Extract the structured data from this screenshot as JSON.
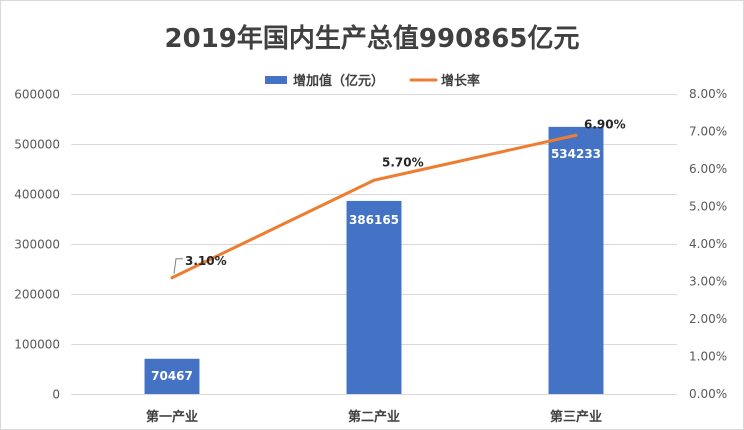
{
  "chart_data": {
    "type": "bar",
    "title": "2019年国内生产总值990865亿元",
    "categories": [
      "第一产业",
      "第二产业",
      "第三产业"
    ],
    "series": [
      {
        "name": "增加值（亿元）",
        "type": "bar",
        "y_axis": "left",
        "values": [
          70467,
          386165,
          534233
        ],
        "data_labels": [
          "70467",
          "386165",
          "534233"
        ],
        "color": "#4472C4"
      },
      {
        "name": "增长率",
        "type": "line",
        "y_axis": "right",
        "values": [
          3.1,
          5.7,
          6.9
        ],
        "data_labels": [
          "3.10%",
          "5.70%",
          "6.90%"
        ],
        "color": "#ED7D31"
      }
    ],
    "y_left": {
      "ylim": [
        0,
        600000
      ],
      "ticks": [
        0,
        100000,
        200000,
        300000,
        400000,
        500000,
        600000
      ],
      "tick_labels": [
        "0",
        "100000",
        "200000",
        "300000",
        "400000",
        "500000",
        "600000"
      ]
    },
    "y_right": {
      "ylim": [
        0,
        8
      ],
      "ticks": [
        0,
        1,
        2,
        3,
        4,
        5,
        6,
        7,
        8
      ],
      "tick_labels": [
        "0.00%",
        "1.00%",
        "2.00%",
        "3.00%",
        "4.00%",
        "5.00%",
        "6.00%",
        "7.00%",
        "8.00%"
      ]
    },
    "grid": true,
    "legend": "top-center"
  }
}
